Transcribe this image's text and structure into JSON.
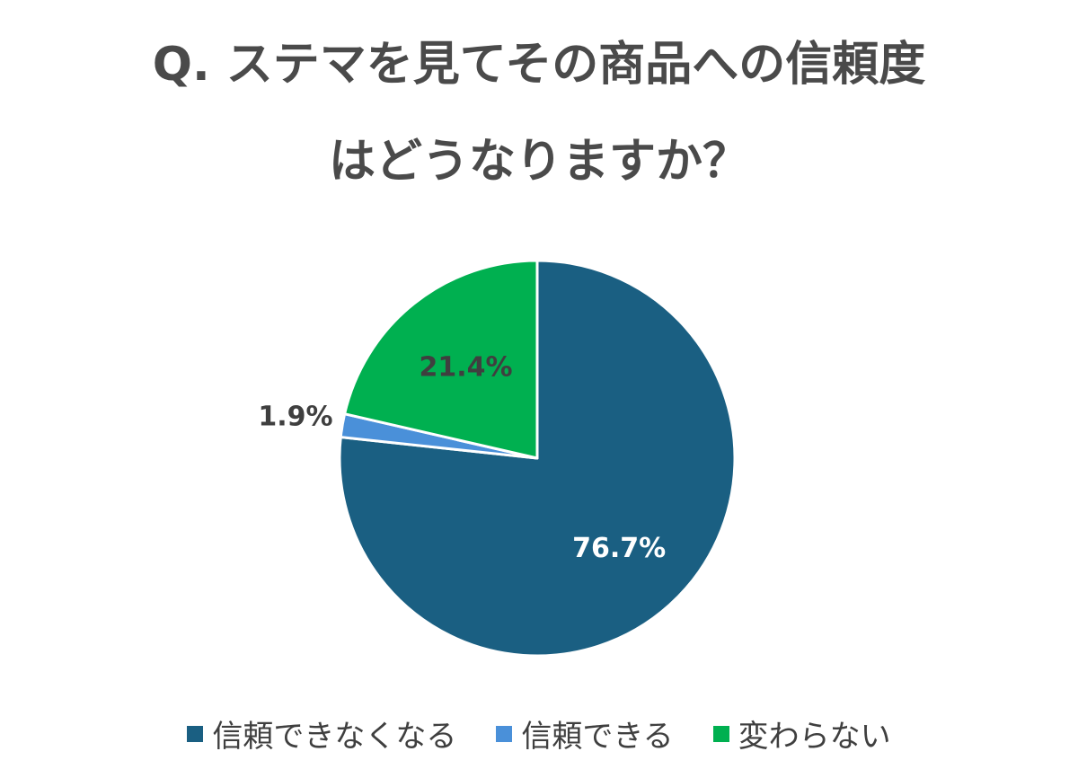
{
  "chart_data": {
    "type": "pie",
    "title_lines": [
      "Q. ステマを見てその商品への信頼度",
      "はどうなりますか？"
    ],
    "slices": [
      {
        "label": "信頼できなくなる",
        "value": 76.7,
        "value_label": "76.7%",
        "color": "#1a5f82"
      },
      {
        "label": "信頼できる",
        "value": 1.9,
        "value_label": "1.9%",
        "color": "#4a90d9"
      },
      {
        "label": "変わらない",
        "value": 21.4,
        "value_label": "21.4%",
        "color": "#00b050"
      }
    ],
    "legend_position": "bottom"
  }
}
